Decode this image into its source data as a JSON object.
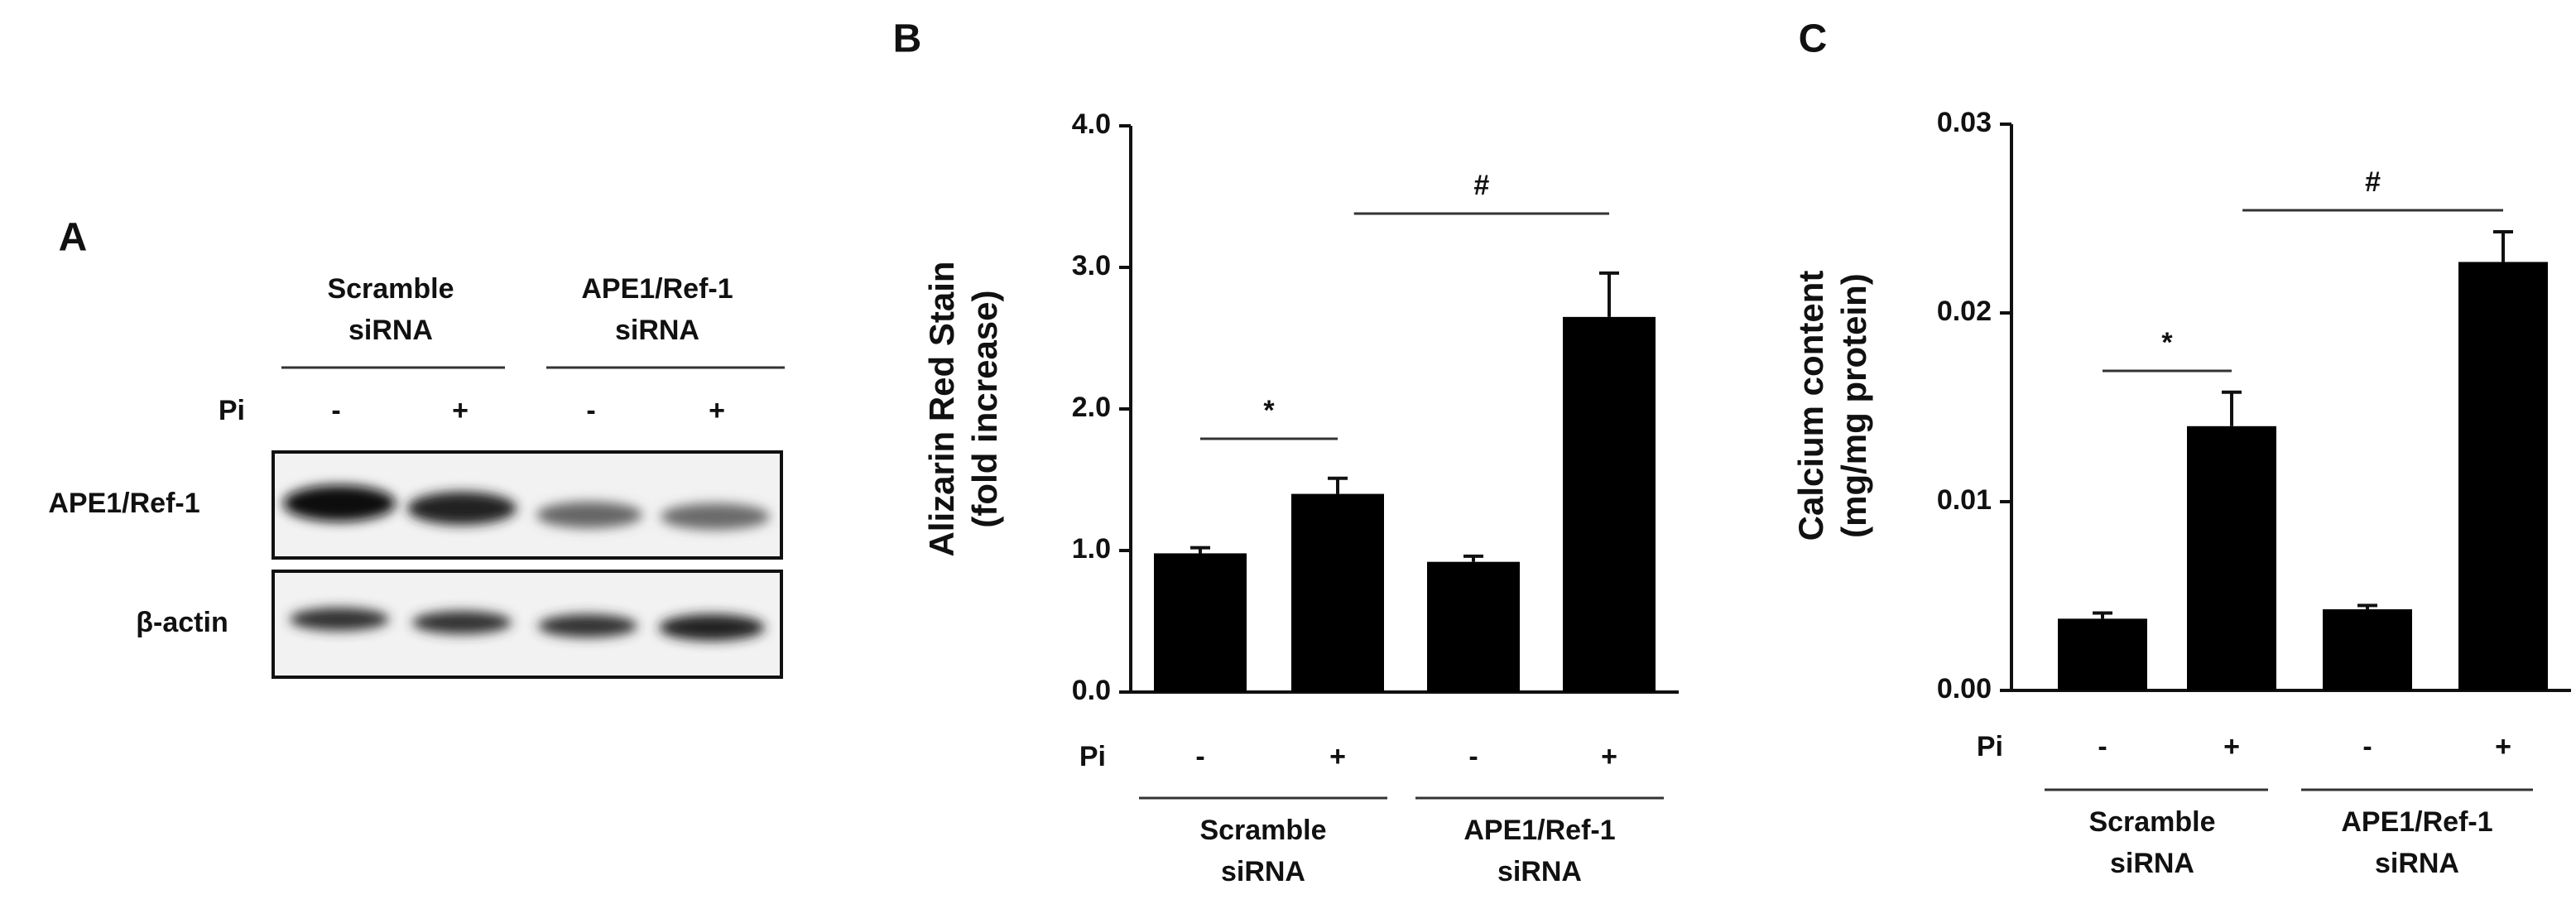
{
  "blot": {
    "label": "A",
    "groups": [
      "Scramble siRNA",
      "APE1/Ref-1 siRNA"
    ],
    "pi_label": "Pi",
    "pi": [
      "-",
      "+",
      "-",
      "+"
    ],
    "proteins": [
      "APE1/Ref-1",
      "β-actin"
    ]
  },
  "chart_data": [
    {
      "type": "bar",
      "label": "B",
      "ylabel": "Alizarin Red Stain (fold increase)",
      "category_title": "Pi",
      "categories": [
        "-",
        "+",
        "-",
        "+"
      ],
      "groups": [
        "Scramble siRNA",
        "APE1/Ref-1 siRNA"
      ],
      "values": [
        0.98,
        1.4,
        0.92,
        2.65
      ],
      "errors": [
        0.04,
        0.11,
        0.04,
        0.31
      ],
      "color": "#000000",
      "ylim": [
        0,
        4
      ],
      "yticks": [
        {
          "value": 0,
          "label": "0.0"
        },
        {
          "value": 1,
          "label": "1.0"
        },
        {
          "value": 2,
          "label": "2.0"
        },
        {
          "value": 3,
          "label": "3.0"
        },
        {
          "value": 4,
          "label": "4.0"
        }
      ],
      "annotations": [
        "*",
        "#"
      ]
    },
    {
      "type": "bar",
      "label": "C",
      "ylabel": "Calcium content (mg/mg protein)",
      "category_title": "Pi",
      "categories": [
        "-",
        "+",
        "-",
        "+"
      ],
      "groups": [
        "Scramble siRNA",
        "APE1/Ref-1 siRNA"
      ],
      "values": [
        0.0038,
        0.014,
        0.0043,
        0.0227
      ],
      "errors": [
        0.0003,
        0.0018,
        0.0002,
        0.0016
      ],
      "color": "#000000",
      "ylim": [
        0,
        0.03
      ],
      "yticks": [
        {
          "value": 0,
          "label": "0.00"
        },
        0.01,
        0.02,
        0.03
      ],
      "annotations": [
        "*",
        "#"
      ]
    }
  ]
}
